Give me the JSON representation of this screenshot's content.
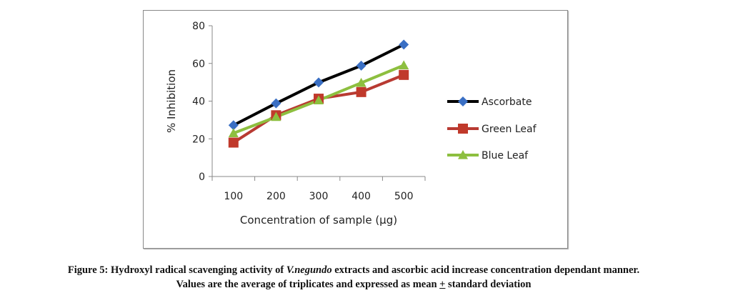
{
  "chart_data": {
    "type": "line",
    "title": "",
    "xlabel": "Concentration of sample (µg)",
    "ylabel": "% Inhibition",
    "categories": [
      "100",
      "200",
      "300",
      "400",
      "500"
    ],
    "ylim": [
      0,
      80
    ],
    "yticks": [
      0,
      20,
      40,
      60,
      80
    ],
    "grid": false,
    "legend_position": "right",
    "series": [
      {
        "name": "Ascorbate",
        "color": "#000000",
        "marker_color": "#3a6fc4",
        "marker": "diamond",
        "values": [
          27.2,
          38.8,
          49.9,
          58.8,
          70.0
        ]
      },
      {
        "name": "Green Leaf",
        "color": "#b83a32",
        "marker_color": "#c0392b",
        "marker": "square",
        "values": [
          18.0,
          32.5,
          41.3,
          44.8,
          53.9
        ]
      },
      {
        "name": "Blue Leaf",
        "color": "#8dbf3f",
        "marker_color": "#8dbf3f",
        "marker": "triangle",
        "values": [
          23.0,
          31.6,
          40.4,
          49.7,
          59.0
        ]
      }
    ]
  },
  "caption": {
    "line1_prefix": "Figure 5: Hydroxyl radical scavenging activity of ",
    "line1_italic": "V.negundo",
    "line1_suffix": " extracts and ascorbic acid increase concentration dependant manner.",
    "line2_prefix": "Values are the average of triplicates and expressed as mean ",
    "line2_pm": "+",
    "line2_suffix": " standard deviation"
  }
}
